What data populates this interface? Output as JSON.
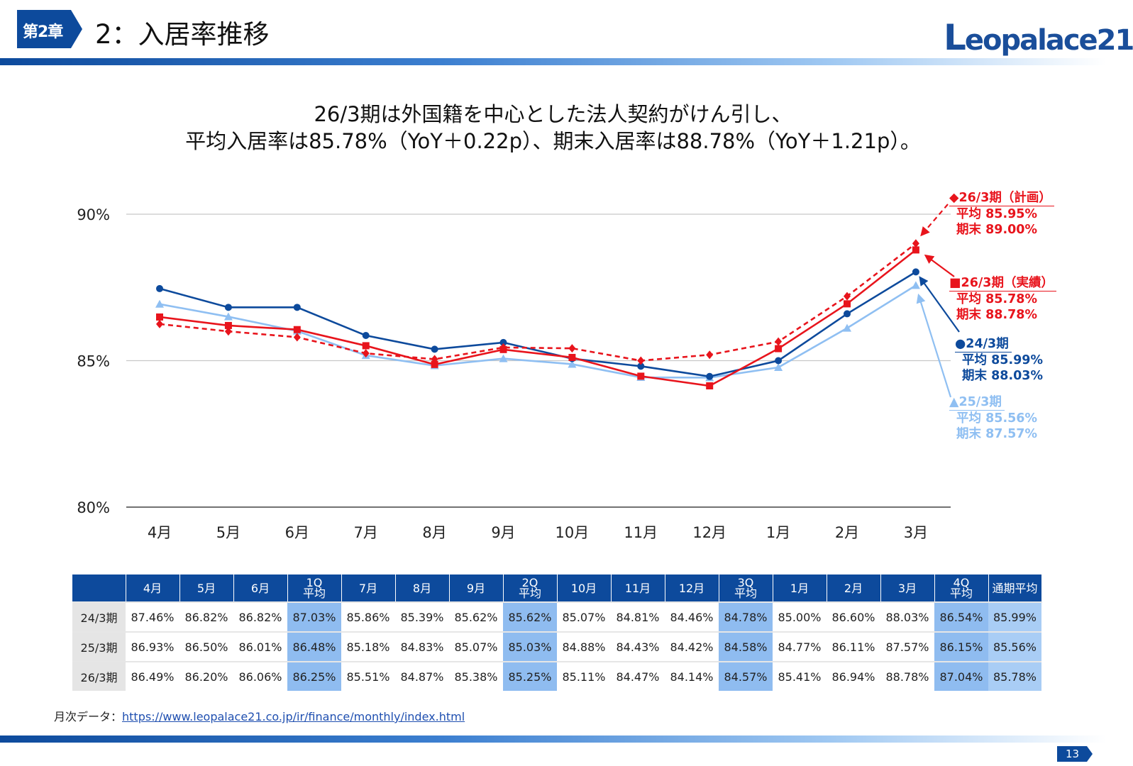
{
  "header": {
    "chapter_badge": "第2章",
    "title": "2：入居率推移",
    "logo_text": "Leopalace21",
    "logo_initial": "L",
    "logo_rest": "eopalace21"
  },
  "headline": {
    "line1": "26/3期は外国籍を中心とした法人契約がけん引し、",
    "line2": "平均入居率は85.78%（YoY＋0.22p）、期末入居率は88.78%（YoY＋1.21p）。"
  },
  "chart_data": {
    "type": "line",
    "categories": [
      "4月",
      "5月",
      "6月",
      "7月",
      "8月",
      "9月",
      "10月",
      "11月",
      "12月",
      "1月",
      "2月",
      "3月"
    ],
    "ylim": [
      80,
      90
    ],
    "yticks": [
      80,
      85,
      90
    ],
    "ytick_labels": [
      "80%",
      "85%",
      "90%"
    ],
    "series": [
      {
        "name": "24/3期",
        "color": "#0d4a9c",
        "marker": "circle",
        "dash": false,
        "values": [
          87.46,
          86.82,
          86.82,
          85.86,
          85.39,
          85.62,
          85.07,
          84.81,
          84.46,
          85.0,
          86.6,
          88.03
        ]
      },
      {
        "name": "25/3期",
        "color": "#8fbff2",
        "marker": "triangle",
        "dash": false,
        "values": [
          86.93,
          86.5,
          86.01,
          85.18,
          84.83,
          85.07,
          84.88,
          84.43,
          84.42,
          84.77,
          86.11,
          87.57
        ]
      },
      {
        "name": "26/3期（実績）",
        "color": "#e8141c",
        "marker": "square",
        "dash": false,
        "values": [
          86.49,
          86.2,
          86.06,
          85.51,
          84.87,
          85.38,
          85.11,
          84.47,
          84.14,
          85.41,
          86.94,
          88.78
        ]
      },
      {
        "name": "26/3期（計画）",
        "color": "#e8141c",
        "marker": "diamond",
        "dash": true,
        "values": [
          86.25,
          86.0,
          85.8,
          85.25,
          85.05,
          85.45,
          85.42,
          85.0,
          85.2,
          85.65,
          87.2,
          89.0
        ]
      }
    ]
  },
  "annotations": [
    {
      "head": "◆26/3期（計画）",
      "avg": "平均 85.95%",
      "end": "期末 89.00%",
      "color": "#e8141c"
    },
    {
      "head": "■26/3期（実績）",
      "avg": "平均 85.78%",
      "end": "期末 88.78%",
      "color": "#e8141c"
    },
    {
      "head": "●24/3期",
      "avg": "平均 85.99%",
      "end": "期末 88.03%",
      "color": "#0d4a9c"
    },
    {
      "head": "▲25/3期",
      "avg": "平均 85.56%",
      "end": "期末 87.57%",
      "color": "#8fbff2"
    }
  ],
  "table": {
    "headers": [
      "",
      "4月",
      "5月",
      "6月",
      "1Q 平均",
      "7月",
      "8月",
      "9月",
      "2Q 平均",
      "10月",
      "11月",
      "12月",
      "3Q 平均",
      "1月",
      "2月",
      "3月",
      "4Q 平均",
      "通期平均"
    ],
    "rows": [
      {
        "label": "24/3期",
        "cells": [
          "87.46%",
          "86.82%",
          "86.82%",
          "87.03%",
          "85.86%",
          "85.39%",
          "85.62%",
          "85.62%",
          "85.07%",
          "84.81%",
          "84.46%",
          "84.78%",
          "85.00%",
          "86.60%",
          "88.03%",
          "86.54%",
          "85.99%"
        ]
      },
      {
        "label": "25/3期",
        "cells": [
          "86.93%",
          "86.50%",
          "86.01%",
          "86.48%",
          "85.18%",
          "84.83%",
          "85.07%",
          "85.03%",
          "84.88%",
          "84.43%",
          "84.42%",
          "84.58%",
          "84.77%",
          "86.11%",
          "87.57%",
          "86.15%",
          "85.56%"
        ]
      },
      {
        "label": "26/3期",
        "cells": [
          "86.49%",
          "86.20%",
          "86.06%",
          "86.25%",
          "85.51%",
          "84.87%",
          "85.38%",
          "85.25%",
          "85.11%",
          "84.47%",
          "84.14%",
          "84.57%",
          "85.41%",
          "86.94%",
          "88.78%",
          "87.04%",
          "85.78%"
        ]
      }
    ]
  },
  "footer": {
    "source_label": "月次データ：",
    "source_url": "https://www.leopalace21.co.jp/ir/finance/monthly/index.html",
    "page_number": "13"
  },
  "colors": {
    "brand": "#0d4a9c",
    "plan_red": "#e8141c",
    "light_blue": "#8fbff2",
    "avg_cell": "#8fbcf0"
  }
}
